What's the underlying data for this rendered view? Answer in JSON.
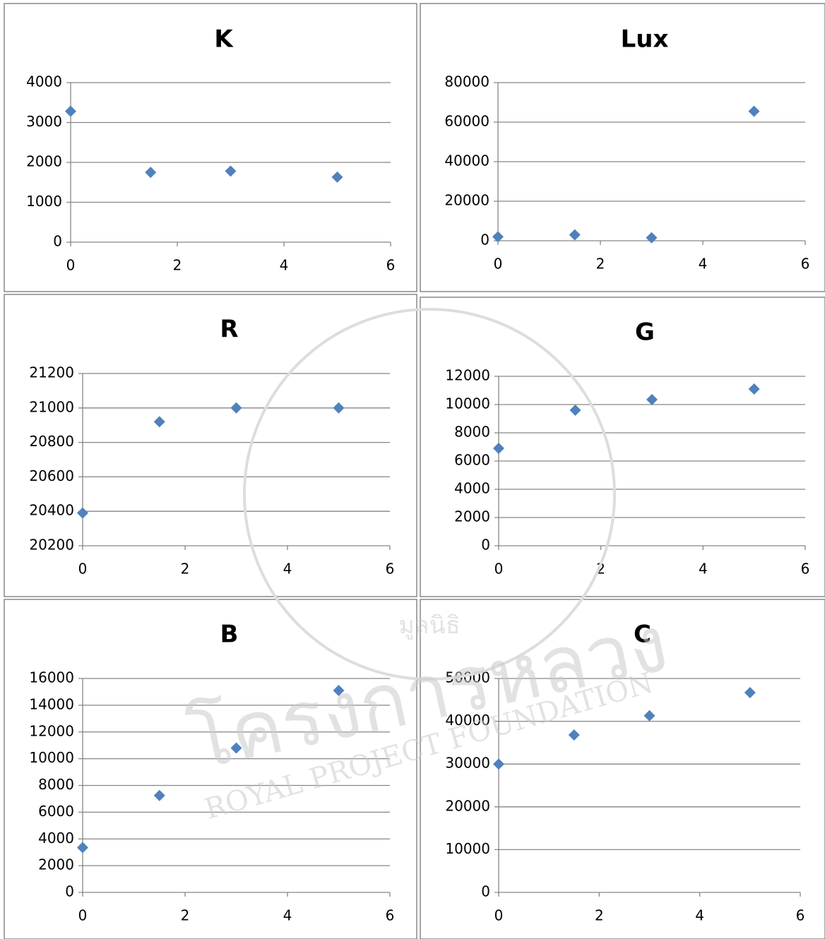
{
  "chart_data": [
    {
      "type": "scatter",
      "title": "K",
      "x": [
        0,
        1.5,
        3,
        5
      ],
      "values": [
        3280,
        1750,
        1780,
        1630
      ],
      "color": "#4f81bd",
      "xlim": [
        0,
        6
      ],
      "xticks": [
        0,
        2,
        4,
        6
      ],
      "ylim": [
        0,
        4000
      ],
      "yticks": [
        0,
        1000,
        2000,
        3000,
        4000
      ],
      "grid": true
    },
    {
      "type": "scatter",
      "title": "Lux",
      "x": [
        0,
        1.5,
        3,
        5
      ],
      "values": [
        2000,
        3000,
        1500,
        65500
      ],
      "color": "#4f81bd",
      "xlim": [
        0,
        6
      ],
      "xticks": [
        0,
        2,
        4,
        6
      ],
      "ylim": [
        0,
        80000
      ],
      "yticks": [
        0,
        20000,
        40000,
        60000,
        80000
      ],
      "grid": true
    },
    {
      "type": "scatter",
      "title": "R",
      "x": [
        0,
        1.5,
        3,
        5
      ],
      "values": [
        20390,
        20920,
        21000,
        21000
      ],
      "color": "#4f81bd",
      "xlim": [
        0,
        6
      ],
      "xticks": [
        0,
        2,
        4,
        6
      ],
      "ylim": [
        20200,
        21200
      ],
      "yticks": [
        20200,
        20400,
        20600,
        20800,
        21000,
        21200
      ],
      "grid": true
    },
    {
      "type": "scatter",
      "title": "G",
      "x": [
        0,
        1.5,
        3,
        5
      ],
      "values": [
        6900,
        9600,
        10350,
        11100
      ],
      "color": "#4f81bd",
      "xlim": [
        0,
        6
      ],
      "xticks": [
        0,
        2,
        4,
        6
      ],
      "ylim": [
        0,
        12000
      ],
      "yticks": [
        0,
        2000,
        4000,
        6000,
        8000,
        10000,
        12000
      ],
      "grid": true
    },
    {
      "type": "scatter",
      "title": "B",
      "x": [
        0,
        1.5,
        3,
        5
      ],
      "values": [
        3350,
        7250,
        10800,
        15100
      ],
      "color": "#4f81bd",
      "xlim": [
        0,
        6
      ],
      "xticks": [
        0,
        2,
        4,
        6
      ],
      "ylim": [
        0,
        16000
      ],
      "yticks": [
        0,
        2000,
        4000,
        6000,
        8000,
        10000,
        12000,
        14000,
        16000
      ],
      "grid": true
    },
    {
      "type": "scatter",
      "title": "C",
      "x": [
        0,
        1.5,
        3,
        5
      ],
      "values": [
        30000,
        36800,
        41300,
        46700
      ],
      "color": "#4f81bd",
      "xlim": [
        0,
        6
      ],
      "xticks": [
        0,
        2,
        4,
        6
      ],
      "ylim": [
        0,
        50000
      ],
      "yticks": [
        0,
        10000,
        20000,
        30000,
        40000,
        50000
      ],
      "grid": true
    }
  ],
  "watermark": {
    "foundation_thai": "มูลนิธิ",
    "project_thai": "โครงการหลวง",
    "english": "ROYAL PROJECT FOUNDATION"
  }
}
